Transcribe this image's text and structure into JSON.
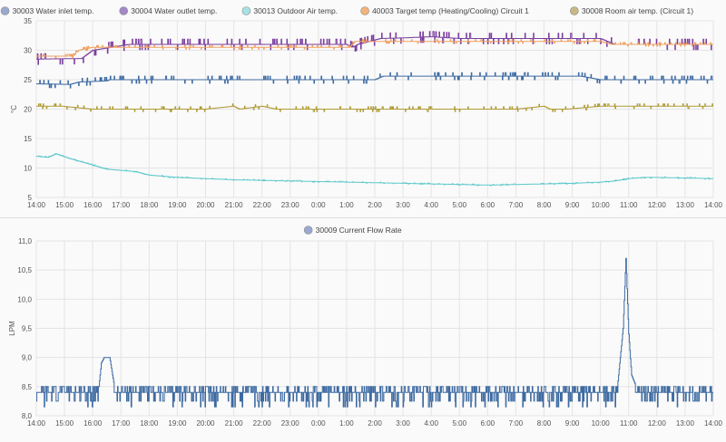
{
  "chart_data": [
    {
      "type": "line",
      "title": "",
      "ylabel": "°C",
      "ylim": [
        5,
        35
      ],
      "yticks": [
        5,
        10,
        15,
        20,
        25,
        30,
        35
      ],
      "xticks": [
        "14:00",
        "15:00",
        "16:00",
        "17:00",
        "18:00",
        "19:00",
        "20:00",
        "21:00",
        "22:00",
        "23:00",
        "0:00",
        "1:00",
        "2:00",
        "3:00",
        "4:00",
        "5:00",
        "6:00",
        "7:00",
        "8:00",
        "9:00",
        "10:00",
        "11:00",
        "12:00",
        "13:00",
        "14:00"
      ],
      "grid": true,
      "legend": "top",
      "x_unit": "hours since 14:00",
      "series": [
        {
          "name": "30003 Water inlet temp.",
          "color": "#3d6aa1",
          "dot": "#9aa9cf",
          "x": [
            0,
            1.2,
            1.5,
            2.5,
            2.6,
            4,
            5,
            9,
            10,
            11,
            12,
            12.3,
            13,
            14,
            15,
            16,
            17,
            18,
            19,
            19.3,
            20,
            21,
            22,
            24
          ],
          "y": [
            24.3,
            24.2,
            24.6,
            24.8,
            25,
            25,
            25,
            25,
            25,
            25,
            25,
            25.6,
            25.6,
            25.6,
            25.6,
            25.6,
            25.6,
            25.6,
            25.6,
            25.6,
            25,
            25,
            25,
            25
          ]
        },
        {
          "name": "30004 Water outlet temp.",
          "color": "#7b3f9e",
          "dot": "#a388c7",
          "x": [
            0,
            1.6,
            2,
            3.3,
            4.2,
            5,
            8,
            11,
            11.2,
            11.4,
            12.2,
            13,
            13.5,
            14,
            15,
            16,
            17,
            18,
            19,
            20,
            20.5,
            21,
            22,
            24
          ],
          "y": [
            28.5,
            28.6,
            30,
            31,
            31,
            31,
            31,
            31,
            30.5,
            31,
            32,
            32.1,
            32.2,
            32.3,
            32,
            32,
            32,
            32,
            32,
            32,
            31,
            31,
            31,
            31
          ]
        },
        {
          "name": "30013 Outdoor Air temp.",
          "color": "#5ec8cc",
          "dot": "#a8e1e5",
          "x": [
            0,
            0.4,
            0.7,
            1.2,
            2,
            2.5,
            3,
            3.5,
            4,
            5,
            6,
            7,
            8,
            9,
            10,
            11,
            12,
            13,
            14,
            15,
            16,
            17,
            18,
            19,
            20,
            20.5,
            21,
            21.5,
            22,
            23,
            24
          ],
          "y": [
            12,
            11.8,
            12.4,
            11.6,
            10.5,
            9.8,
            9.6,
            9.4,
            8.8,
            8.4,
            8.2,
            8,
            7.9,
            7.8,
            7.7,
            7.6,
            7.5,
            7.4,
            7.3,
            7.2,
            7.1,
            7.2,
            7.3,
            7.4,
            7.6,
            7.8,
            8.2,
            8.4,
            8.4,
            8.3,
            8.2
          ]
        },
        {
          "name": "40003 Target temp (Heating/Cooling) Circuit 1",
          "color": "#f0a060",
          "dot": "#f2b27a",
          "x": [
            0,
            1.3,
            1.5,
            2,
            4,
            11,
            11.1,
            11.3,
            11.4,
            12,
            13,
            14,
            15,
            16,
            18,
            18.4,
            19,
            19.6,
            20,
            20.4,
            24
          ],
          "y": [
            29,
            29,
            30,
            30.5,
            30.5,
            30.5,
            30.5,
            31.5,
            31.5,
            31.5,
            31.5,
            31.5,
            31.5,
            31.5,
            31.5,
            31.5,
            31.5,
            31.5,
            31.5,
            31,
            31
          ]
        },
        {
          "name": "30008 Room air temp. (Circuit 1)",
          "color": "#b09a36",
          "dot": "#c8b884",
          "x": [
            0,
            0.9,
            2,
            5,
            6,
            7,
            7.2,
            8,
            8.5,
            9,
            10,
            11,
            12,
            13,
            14,
            15,
            16,
            17,
            18,
            18.2,
            18.8,
            20,
            24
          ],
          "y": [
            20.5,
            20.5,
            20,
            20,
            20,
            20.5,
            20,
            20.5,
            20,
            20,
            20,
            20,
            20,
            20,
            20,
            20,
            20,
            20,
            20.5,
            20,
            20,
            20.5,
            20.5
          ]
        }
      ]
    },
    {
      "type": "line",
      "title": "",
      "ylabel": "LPM",
      "ylim": [
        8.0,
        11.0
      ],
      "yticks": [
        "8,0",
        "8,5",
        "9,0",
        "9,5",
        "10,0",
        "10,5",
        "11,0"
      ],
      "yvals": [
        8.0,
        8.5,
        9.0,
        9.5,
        10.0,
        10.5,
        11.0
      ],
      "xticks": [
        "14:00",
        "15:00",
        "16:00",
        "17:00",
        "18:00",
        "19:00",
        "20:00",
        "21:00",
        "22:00",
        "23:00",
        "0:00",
        "1:00",
        "2:00",
        "3:00",
        "4:00",
        "5:00",
        "6:00",
        "7:00",
        "8:00",
        "9:00",
        "10:00",
        "11:00",
        "12:00",
        "13:00",
        "14:00"
      ],
      "grid": true,
      "legend": "top",
      "series": [
        {
          "name": "30009 Current Flow Rate",
          "color": "#3d6aa1",
          "dot": "#9aa9cf",
          "x": [
            0,
            2.2,
            2.3,
            2.4,
            2.6,
            2.7,
            2.8,
            3,
            4,
            6,
            8,
            10,
            12,
            14,
            16,
            18,
            20,
            20.6,
            20.8,
            20.9,
            21,
            21.1,
            21.3,
            22,
            24
          ],
          "y": [
            8.35,
            8.4,
            8.9,
            9.0,
            9.0,
            8.7,
            8.4,
            8.4,
            8.4,
            8.4,
            8.4,
            8.4,
            8.4,
            8.4,
            8.4,
            8.4,
            8.4,
            8.5,
            9.5,
            10.7,
            9.4,
            8.7,
            8.45,
            8.4,
            8.4
          ],
          "baseline": 8.4
        }
      ]
    }
  ]
}
